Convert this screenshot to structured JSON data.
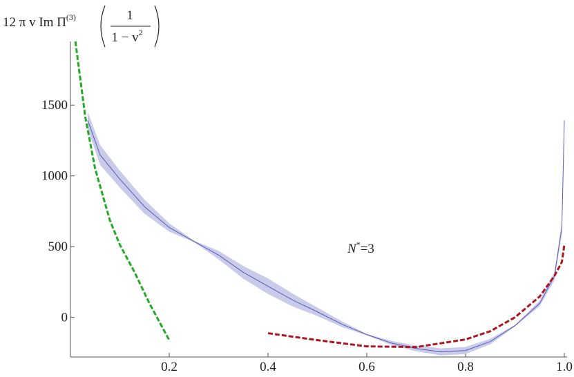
{
  "chart_data": {
    "type": "line",
    "y_label": {
      "prefix": "12 π v Im Π",
      "superscript": "(3)",
      "numerator": "1",
      "denominator": "1 − v",
      "denominator_superscript": "2"
    },
    "annotation": {
      "symbol": "N",
      "superscript": "*",
      "rest": "=3"
    },
    "xlim": [
      0,
      1
    ],
    "ylim": [
      -280,
      1950
    ],
    "xticks": [
      0.2,
      0.4,
      0.6,
      0.8,
      {
        "value": 1,
        "label": "1.0"
      }
    ],
    "yticks": [
      0,
      500,
      1000,
      1500
    ],
    "band": {
      "color": "#c9cbeb",
      "lower": [
        1332,
        1078,
        917,
        732,
        605,
        532,
        410,
        273,
        165,
        77,
        9,
        -69,
        -127,
        -196,
        -240,
        -269,
        -259,
        -191,
        -64,
        78,
        263,
        595,
        1392
      ],
      "upper": [
        1452,
        1218,
        1037,
        832,
        665,
        542,
        470,
        363,
        275,
        167,
        69,
        -29,
        -117,
        -166,
        -200,
        -219,
        -209,
        -151,
        -54,
        118,
        323,
        675,
        1392
      ]
    },
    "series": [
      {
        "color": "#5a5cae",
        "dashed": false,
        "x": [
          0.035,
          0.06,
          0.1,
          0.15,
          0.2,
          0.25,
          0.3,
          0.35,
          0.4,
          0.45,
          0.5,
          0.55,
          0.6,
          0.65,
          0.7,
          0.75,
          0.8,
          0.85,
          0.9,
          0.95,
          0.98,
          0.995,
          1
        ],
        "values": [
          1392,
          1148,
          977,
          782,
          635,
          537,
          440,
          318,
          220,
          122,
          39,
          -49,
          -122,
          -181,
          -220,
          -244,
          -234,
          -171,
          -59,
          98,
          293,
          635,
          1392
        ]
      },
      {
        "color": "#22aa22",
        "dashed": true,
        "x": [
          0.01,
          0.03,
          0.05,
          0.08,
          0.1,
          0.13,
          0.16,
          0.2
        ],
        "values": [
          1950,
          1417,
          1050,
          684,
          513,
          318,
          98,
          -161
        ]
      },
      {
        "color": "#b0141c",
        "dashed": true,
        "x": [
          0.4,
          0.5,
          0.6,
          0.7,
          0.8,
          0.85,
          0.9,
          0.95,
          0.98,
          0.995,
          1
        ],
        "values": [
          -112,
          -161,
          -205,
          -210,
          -156,
          -98,
          0,
          147,
          293,
          391,
          513
        ]
      }
    ]
  }
}
